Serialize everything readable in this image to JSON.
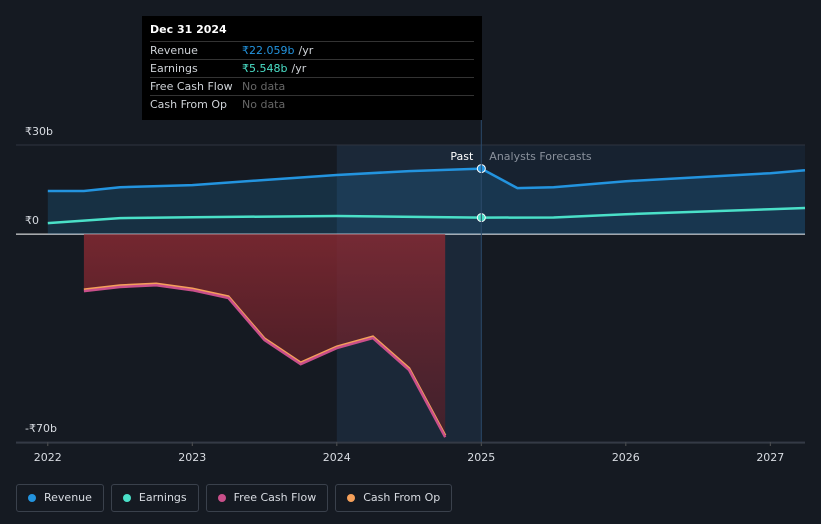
{
  "chart_data": {
    "type": "line",
    "xlim": [
      2021.78,
      2027.24
    ],
    "xticks": [
      2022,
      2023,
      2024,
      2025,
      2026,
      2027
    ],
    "ylim": [
      -70,
      30
    ],
    "yticks": [
      {
        "value": 30,
        "label": "₹30b"
      },
      {
        "value": 0,
        "label": "₹0"
      },
      {
        "value": -70,
        "label": "-₹70b"
      }
    ],
    "forecast_start": 2025,
    "past_label": "Past",
    "forecast_label": "Analysts Forecasts",
    "series": [
      {
        "name": "Revenue",
        "color": "#2394df",
        "x": [
          2022,
          2022.25,
          2022.5,
          2023,
          2023.5,
          2024,
          2024.5,
          2025,
          2025.25,
          2025.5,
          2026,
          2027,
          2027.24
        ],
        "values": [
          14.5,
          14.5,
          15.8,
          16.5,
          18.2,
          19.9,
          21.2,
          22.059,
          15.5,
          15.8,
          17.8,
          20.5,
          21.5
        ]
      },
      {
        "name": "Earnings",
        "color": "#4ae0c8",
        "x": [
          2022,
          2022.5,
          2023,
          2024,
          2025,
          2025.5,
          2026,
          2027,
          2027.24
        ],
        "values": [
          3.7,
          5.4,
          5.7,
          6.1,
          5.548,
          5.6,
          6.7,
          8.4,
          8.8
        ]
      },
      {
        "name": "Free Cash Flow",
        "color": "#c94f8a",
        "x": [
          2022.25,
          2022.5,
          2022.75,
          2023,
          2023.25,
          2023.5,
          2023.75,
          2024,
          2024.25,
          2024.5,
          2024.75
        ],
        "values": [
          -19.2,
          -17.8,
          -17.2,
          -18.9,
          -21.5,
          -35.7,
          -43.8,
          -38.4,
          -35,
          -45.8,
          -68.4
        ]
      },
      {
        "name": "Cash From Op",
        "color": "#f5a05a",
        "x": [
          2022.25,
          2022.5,
          2022.75,
          2023,
          2023.25,
          2023.5,
          2023.75,
          2024,
          2024.25,
          2024.5,
          2024.75
        ],
        "values": [
          -18.7,
          -17.3,
          -16.7,
          -18.4,
          -21,
          -35.2,
          -43.3,
          -37.9,
          -34.5,
          -45.2,
          -67.8
        ]
      }
    ]
  },
  "tooltip": {
    "date": "Dec 31 2024",
    "rows": [
      {
        "label": "Revenue",
        "value": "₹22.059b",
        "unit": "/yr"
      },
      {
        "label": "Earnings",
        "value": "₹5.548b",
        "unit": "/yr"
      },
      {
        "label": "Free Cash Flow",
        "value": "No data"
      },
      {
        "label": "Cash From Op",
        "value": "No data"
      }
    ]
  }
}
